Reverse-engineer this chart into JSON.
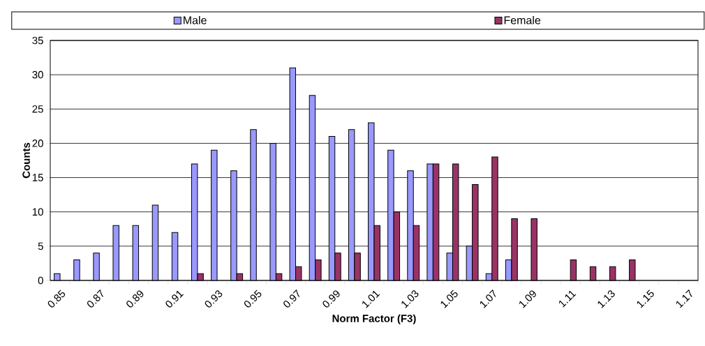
{
  "chart_data": {
    "type": "bar",
    "xlabel": "Norm Factor (F3)",
    "ylabel": "Counts",
    "categories": [
      "0.85",
      null,
      "0.87",
      null,
      "0.89",
      null,
      "0.91",
      null,
      "0.93",
      null,
      "0.95",
      null,
      "0.97",
      null,
      "0.99",
      null,
      "1.01",
      null,
      "1.03",
      null,
      "1.05",
      null,
      "1.07",
      null,
      "1.09",
      null,
      "1.11",
      null,
      "1.13",
      null,
      "1.15",
      null,
      "1.17"
    ],
    "series": [
      {
        "name": "Male",
        "color": "#9999ff",
        "values": [
          1,
          3,
          4,
          8,
          8,
          11,
          7,
          17,
          19,
          16,
          22,
          20,
          31,
          27,
          21,
          22,
          23,
          19,
          16,
          17,
          4,
          5,
          1,
          3,
          0,
          0,
          0,
          0,
          0,
          0,
          0,
          0,
          0
        ]
      },
      {
        "name": "Female",
        "color": "#993366",
        "values": [
          0,
          0,
          0,
          0,
          0,
          0,
          0,
          1,
          0,
          1,
          0,
          1,
          2,
          3,
          4,
          4,
          8,
          10,
          8,
          17,
          17,
          14,
          18,
          9,
          9,
          0,
          3,
          2,
          2,
          3,
          0,
          0,
          0
        ]
      }
    ],
    "ylim": [
      0,
      35
    ],
    "yticks": [
      0,
      5,
      10,
      15,
      20,
      25,
      30,
      35
    ],
    "grid": "y",
    "legend": "top"
  }
}
